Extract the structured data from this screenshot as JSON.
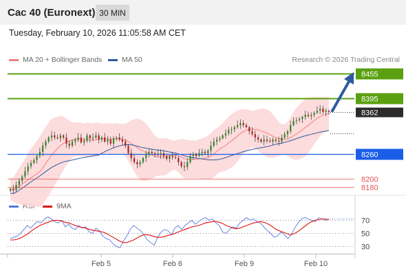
{
  "instrument": "Cac 40 (Euronext)",
  "timeframe": "30 MIN",
  "timestamp": "Tuesday, February 10, 2026 11:05:58 AM CET",
  "credit": "Research © 2026 Trading Central",
  "legend_main": [
    {
      "label": "MA 20 + Bollinger Bands",
      "color": "#f08080"
    },
    {
      "label": "MA 50",
      "color": "#2d5aa0"
    }
  ],
  "legend_rsi": [
    {
      "label": "RSI",
      "color": "#5577dd"
    },
    {
      "label": "9MA",
      "color": "#e01010"
    }
  ],
  "colors": {
    "resistance": "#5aa010",
    "support": "#1a5ee8",
    "minor_support": "#e85050",
    "candle_up": "#2a8a2a",
    "candle_down": "#b02020",
    "bollinger_fill": "#fbd6d6",
    "arrow": "#2d5aa0"
  },
  "chart_data": [
    {
      "type": "candlestick",
      "title": "Cac 40 (Euronext)",
      "ylim": [
        8163,
        8472
      ],
      "x_categories": [
        "Feb 5",
        "Feb 6",
        "Feb 9",
        "Feb 10"
      ],
      "levels": [
        {
          "value": 8455,
          "label": "8455",
          "kind": "resistance"
        },
        {
          "value": 8395,
          "label": "8395",
          "kind": "resistance"
        },
        {
          "value": 8362,
          "label": "8362",
          "kind": "last_price"
        },
        {
          "value": 8260,
          "label": "8260",
          "kind": "support"
        },
        {
          "value": 8200,
          "label": "8200",
          "kind": "minor_support"
        },
        {
          "value": 8180,
          "label": "8180",
          "kind": "minor_support"
        }
      ],
      "close_series": [
        8175,
        8172,
        8185,
        8195,
        8205,
        8218,
        8230,
        8238,
        8245,
        8255,
        8265,
        8280,
        8290,
        8300,
        8305,
        8300,
        8298,
        8305,
        8300,
        8285,
        8280,
        8290,
        8295,
        8300,
        8288,
        8292,
        8305,
        8298,
        8300,
        8305,
        8295,
        8300,
        8290,
        8295,
        8285,
        8298,
        8300,
        8295,
        8290,
        8280,
        8262,
        8250,
        8240,
        8235,
        8240,
        8250,
        8258,
        8265,
        8262,
        8260,
        8258,
        8262,
        8255,
        8248,
        8255,
        8252,
        8250,
        8240,
        8230,
        8228,
        8240,
        8255,
        8260,
        8255,
        8262,
        8265,
        8262,
        8268,
        8280,
        8290,
        8295,
        8298,
        8305,
        8310,
        8318,
        8320,
        8325,
        8330,
        8335,
        8330,
        8325,
        8315,
        8308,
        8300,
        8295,
        8290,
        8295,
        8292,
        8290,
        8295,
        8292,
        8290,
        8300,
        8308,
        8315,
        8330,
        8340,
        8342,
        8345,
        8350,
        8355,
        8352,
        8355,
        8360,
        8365,
        8370,
        8362,
        8365,
        8362
      ]
    },
    {
      "type": "line",
      "title": "RSI",
      "ylim": [
        20,
        82
      ],
      "y_ticks": [
        70,
        50,
        30
      ],
      "series": [
        {
          "name": "RSI",
          "values": [
            42,
            44,
            46,
            50,
            56,
            62,
            58,
            64,
            68,
            66,
            72,
            75,
            72,
            68,
            66,
            70,
            60,
            64,
            58,
            56,
            62,
            58,
            60,
            52,
            50,
            58,
            54,
            46,
            42,
            40,
            34,
            30,
            28,
            38,
            46,
            56,
            62,
            58,
            54,
            48,
            40,
            36,
            32,
            44,
            52,
            56,
            54,
            48,
            58,
            62,
            56,
            62,
            66,
            70,
            64,
            68,
            72,
            74,
            70,
            72,
            66,
            62,
            52,
            50,
            56,
            60,
            58,
            66,
            70,
            74,
            70,
            72,
            68,
            66,
            60,
            54,
            50,
            44,
            46,
            52,
            48,
            42,
            48,
            58,
            66,
            72,
            74,
            72,
            70,
            68,
            74,
            72,
            70,
            72
          ]
        },
        {
          "name": "9MA",
          "values": [
            40,
            40,
            41,
            43,
            46,
            49,
            53,
            57,
            60,
            63,
            65,
            67,
            69,
            70,
            70,
            69,
            67,
            66,
            64,
            62,
            60,
            59,
            58,
            56,
            55,
            54,
            53,
            52,
            50,
            47,
            44,
            41,
            38,
            36,
            36,
            38,
            40,
            43,
            46,
            48,
            48,
            47,
            45,
            44,
            44,
            45,
            47,
            48,
            50,
            52,
            54,
            56,
            58,
            60,
            61,
            62,
            64,
            66,
            67,
            68,
            68,
            67,
            65,
            62,
            60,
            58,
            57,
            58,
            60,
            62,
            64,
            66,
            67,
            68,
            67,
            65,
            62,
            58,
            55,
            53,
            51,
            49,
            48,
            50,
            53,
            57,
            61,
            65,
            68,
            70,
            71,
            72,
            72,
            71
          ]
        }
      ]
    }
  ]
}
